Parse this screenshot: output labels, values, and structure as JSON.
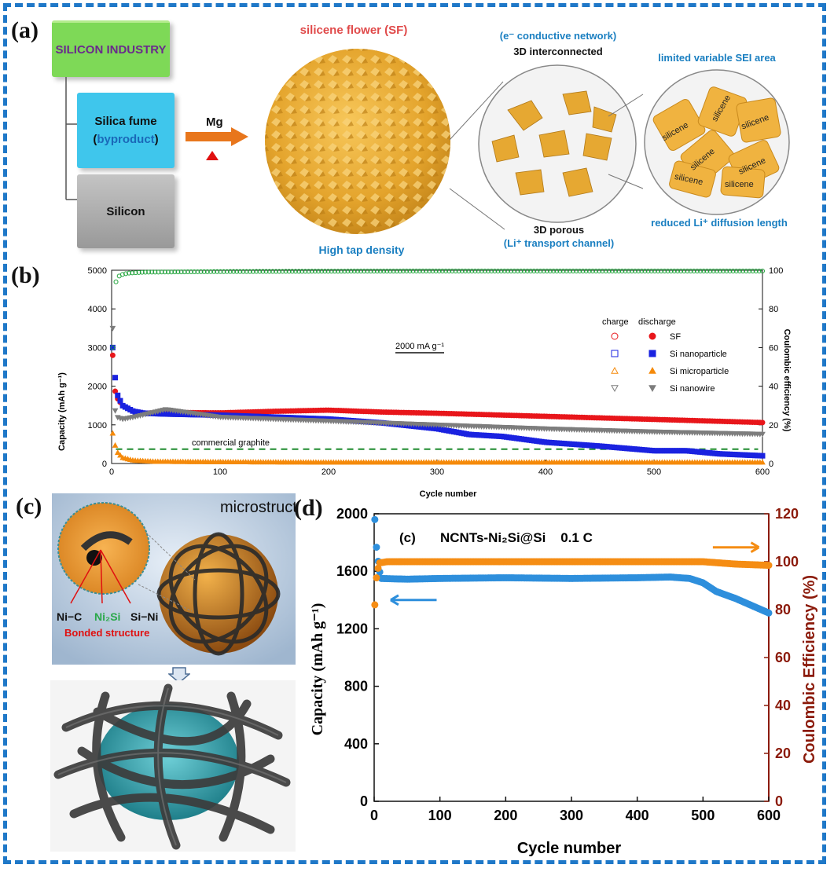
{
  "panel_labels": {
    "a": "(a)",
    "b": "(b)",
    "c": "(c)",
    "d": "(d)"
  },
  "panel_a": {
    "industry_box": "SILICON INDUSTRY",
    "fume_box_line1": "Silica fume",
    "fume_box_open": "(",
    "fume_box_byproduct": "byproduct",
    "fume_box_close": ")",
    "silicon_box": "Silicon",
    "reagent": "Mg",
    "flower_title": "silicene flower (SF)",
    "tap_density": "High tap density",
    "network_line1": "(e⁻ conductive network)",
    "network_line2": "3D interconnected",
    "porous_line1": "3D porous",
    "porous_line2": "(Li⁺ transport channel)",
    "sei_label": "limited variable SEI area",
    "diffusion_label": "reduced Li⁺ diffusion length",
    "flake_label": "silicene",
    "colors": {
      "industry": "#7ed957",
      "fume": "#3fc6ec",
      "silicon": "#a8a8a8",
      "arrow": "#e8761c",
      "heat": "#e01010",
      "accent_text": "#1a7fc1",
      "flower_title": "#e04a4a"
    }
  },
  "panel_b": {
    "chart_data": {
      "type": "scatter",
      "title": "",
      "xlabel": "Cycle number",
      "ylabel": "Capacity (mAh g⁻¹)",
      "y2label": "Coulombic efficiency (%)",
      "xlim": [
        0,
        600
      ],
      "ylim": [
        0,
        5000
      ],
      "y2lim": [
        0,
        100
      ],
      "xticks": [
        "0",
        "100",
        "200",
        "300",
        "400",
        "500",
        "600"
      ],
      "yticks": [
        "0",
        "1000",
        "2000",
        "3000",
        "4000",
        "5000"
      ],
      "y2ticks": [
        "0",
        "20",
        "40",
        "60",
        "80",
        "100"
      ],
      "legend_header": [
        "charge",
        "discharge"
      ],
      "legend_position": "right",
      "annotations": {
        "rate": "2000 mA g⁻¹",
        "graphite": "commercial graphite"
      },
      "graphite_capacity": 372,
      "series": [
        {
          "name": "SF",
          "color": "#e8161b",
          "x": [
            1,
            3,
            5,
            10,
            20,
            30,
            50,
            100,
            150,
            200,
            250,
            300,
            350,
            400,
            450,
            500,
            550,
            600
          ],
          "values": [
            2800,
            1900,
            1700,
            1500,
            1350,
            1300,
            1320,
            1310,
            1350,
            1380,
            1330,
            1300,
            1260,
            1220,
            1180,
            1140,
            1100,
            1060
          ]
        },
        {
          "name": "Si nanoparticle",
          "color": "#1a22e0",
          "x": [
            1,
            3,
            5,
            10,
            20,
            30,
            50,
            100,
            150,
            200,
            250,
            300,
            330,
            360,
            400,
            450,
            500,
            530,
            560,
            600
          ],
          "values": [
            3000,
            2300,
            1800,
            1500,
            1350,
            1300,
            1280,
            1250,
            1200,
            1150,
            1050,
            900,
            750,
            700,
            550,
            450,
            330,
            330,
            250,
            200
          ]
        },
        {
          "name": "Si microparticle",
          "color": "#f58a0b",
          "x": [
            1,
            3,
            5,
            10,
            20,
            40,
            100,
            200,
            300,
            400,
            500,
            600
          ],
          "values": [
            780,
            500,
            300,
            150,
            80,
            50,
            40,
            30,
            30,
            30,
            30,
            30
          ]
        },
        {
          "name": "Si nanowire",
          "color": "#7d7d7d",
          "x": [
            1,
            3,
            5,
            10,
            20,
            50,
            100,
            200,
            300,
            400,
            500,
            600
          ],
          "values": [
            3500,
            1400,
            1200,
            1150,
            1200,
            1400,
            1200,
            1100,
            1000,
            900,
            820,
            760
          ]
        },
        {
          "name": "Coulombic efficiency",
          "color": "#1fa33a",
          "x": [
            1,
            2,
            3,
            5,
            8,
            15,
            30,
            100,
            200,
            300,
            400,
            500,
            600
          ],
          "values": [
            60,
            82,
            92,
            96,
            97.5,
            98.5,
            99,
            99.3,
            99.5,
            99.6,
            99.6,
            99.6,
            99.6
          ]
        }
      ]
    }
  },
  "panel_c": {
    "microstructure_label": "microstructure",
    "bond_labels": [
      "Ni−C",
      "Ni₂Si",
      "Si−Ni"
    ],
    "bonded_label": "Bonded structure"
  },
  "panel_d": {
    "chart_data": {
      "type": "scatter",
      "title": "NCNTs-Ni₂Si@Si    0.1 C",
      "inner_label": "(c)",
      "xlabel": "Cycle number",
      "ylabel": "Capacity (mAh g⁻¹)",
      "y2label": "Coulombic Efficiency (%)",
      "xlim": [
        0,
        600
      ],
      "ylim": [
        0,
        2000
      ],
      "y2lim": [
        0,
        120
      ],
      "xticks": [
        "0",
        "100",
        "200",
        "300",
        "400",
        "500",
        "600"
      ],
      "yticks": [
        "0",
        "400",
        "800",
        "1200",
        "1600",
        "2000"
      ],
      "y2ticks": [
        "0",
        "20",
        "40",
        "60",
        "80",
        "100",
        "120"
      ],
      "series": [
        {
          "name": "Capacity",
          "color": "#2e8fdc",
          "x": [
            1,
            3,
            5,
            10,
            50,
            100,
            200,
            300,
            400,
            450,
            480,
            500,
            520,
            550,
            580,
            600
          ],
          "values": [
            1960,
            1790,
            1700,
            1550,
            1545,
            1550,
            1555,
            1550,
            1555,
            1560,
            1550,
            1520,
            1460,
            1410,
            1350,
            1310
          ]
        },
        {
          "name": "Coulombic Efficiency",
          "color": "#f58d14",
          "x": [
            1,
            2,
            4,
            8,
            20,
            100,
            200,
            300,
            400,
            500,
            550,
            600
          ],
          "values": [
            82,
            88,
            95,
            99.5,
            100,
            100,
            100,
            100,
            100,
            100,
            99,
            98.5
          ]
        }
      ]
    }
  }
}
